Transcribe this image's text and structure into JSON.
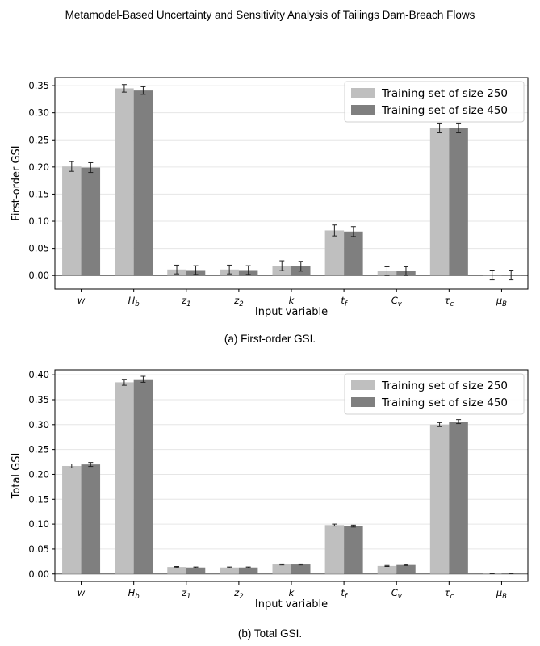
{
  "header": {
    "title": "Metamodel-Based Uncertainty and Sensitivity Analysis of Tailings Dam-Breach Flows"
  },
  "captions": [
    "(a) First-order GSI.",
    "(b) Total GSI."
  ],
  "colors": {
    "series_1": "#bfbfbf",
    "series_2": "#7f7f7f",
    "error_bar": "#222222",
    "grid": "#e6e6e6"
  },
  "chart_data": [
    {
      "type": "bar",
      "title": "",
      "xlabel": "Input variable",
      "ylabel": "First-order GSI",
      "ylim": [
        -0.025,
        0.365
      ],
      "yticks": [
        0.0,
        0.05,
        0.1,
        0.15,
        0.2,
        0.25,
        0.3,
        0.35
      ],
      "ytick_labels": [
        "0.00",
        "0.05",
        "0.10",
        "0.15",
        "0.20",
        "0.25",
        "0.30",
        "0.35"
      ],
      "grid": true,
      "legend_position": "top-right",
      "categories": [
        {
          "base": "w",
          "sub": ""
        },
        {
          "base": "H",
          "sub": "b"
        },
        {
          "base": "z",
          "sub": "1"
        },
        {
          "base": "z",
          "sub": "2"
        },
        {
          "base": "k",
          "sub": ""
        },
        {
          "base": "t",
          "sub": "f"
        },
        {
          "base": "C",
          "sub": "v"
        },
        {
          "base": "τ",
          "sub": "c"
        },
        {
          "base": "μ",
          "sub": "B"
        }
      ],
      "series": [
        {
          "name": "Training set of size 250",
          "values": [
            0.201,
            0.345,
            0.011,
            0.011,
            0.018,
            0.083,
            0.008,
            0.272,
            0.001
          ],
          "errors": [
            0.009,
            0.007,
            0.008,
            0.008,
            0.009,
            0.01,
            0.008,
            0.009,
            0.009
          ]
        },
        {
          "name": "Training set of size 450",
          "values": [
            0.199,
            0.341,
            0.01,
            0.01,
            0.017,
            0.081,
            0.008,
            0.272,
            0.001
          ],
          "errors": [
            0.009,
            0.007,
            0.008,
            0.008,
            0.009,
            0.009,
            0.008,
            0.009,
            0.009
          ]
        }
      ]
    },
    {
      "type": "bar",
      "title": "",
      "xlabel": "Input variable",
      "ylabel": "Total GSI",
      "ylim": [
        -0.015,
        0.41
      ],
      "yticks": [
        0.0,
        0.05,
        0.1,
        0.15,
        0.2,
        0.25,
        0.3,
        0.35,
        0.4
      ],
      "ytick_labels": [
        "0.00",
        "0.05",
        "0.10",
        "0.15",
        "0.20",
        "0.25",
        "0.30",
        "0.35",
        "0.40"
      ],
      "grid": true,
      "legend_position": "top-right",
      "categories": [
        {
          "base": "w",
          "sub": ""
        },
        {
          "base": "H",
          "sub": "b"
        },
        {
          "base": "z",
          "sub": "1"
        },
        {
          "base": "z",
          "sub": "2"
        },
        {
          "base": "k",
          "sub": ""
        },
        {
          "base": "t",
          "sub": "f"
        },
        {
          "base": "C",
          "sub": "v"
        },
        {
          "base": "τ",
          "sub": "c"
        },
        {
          "base": "μ",
          "sub": "B"
        }
      ],
      "series": [
        {
          "name": "Training set of size 250",
          "values": [
            0.217,
            0.385,
            0.014,
            0.013,
            0.019,
            0.098,
            0.016,
            0.3,
            0.001
          ],
          "errors": [
            0.004,
            0.006,
            0.001,
            0.001,
            0.001,
            0.002,
            0.001,
            0.004,
            0.0005
          ]
        },
        {
          "name": "Training set of size 450",
          "values": [
            0.22,
            0.391,
            0.013,
            0.013,
            0.019,
            0.096,
            0.018,
            0.306,
            0.001
          ],
          "errors": [
            0.004,
            0.006,
            0.001,
            0.001,
            0.001,
            0.002,
            0.001,
            0.004,
            0.0005
          ]
        }
      ]
    }
  ]
}
